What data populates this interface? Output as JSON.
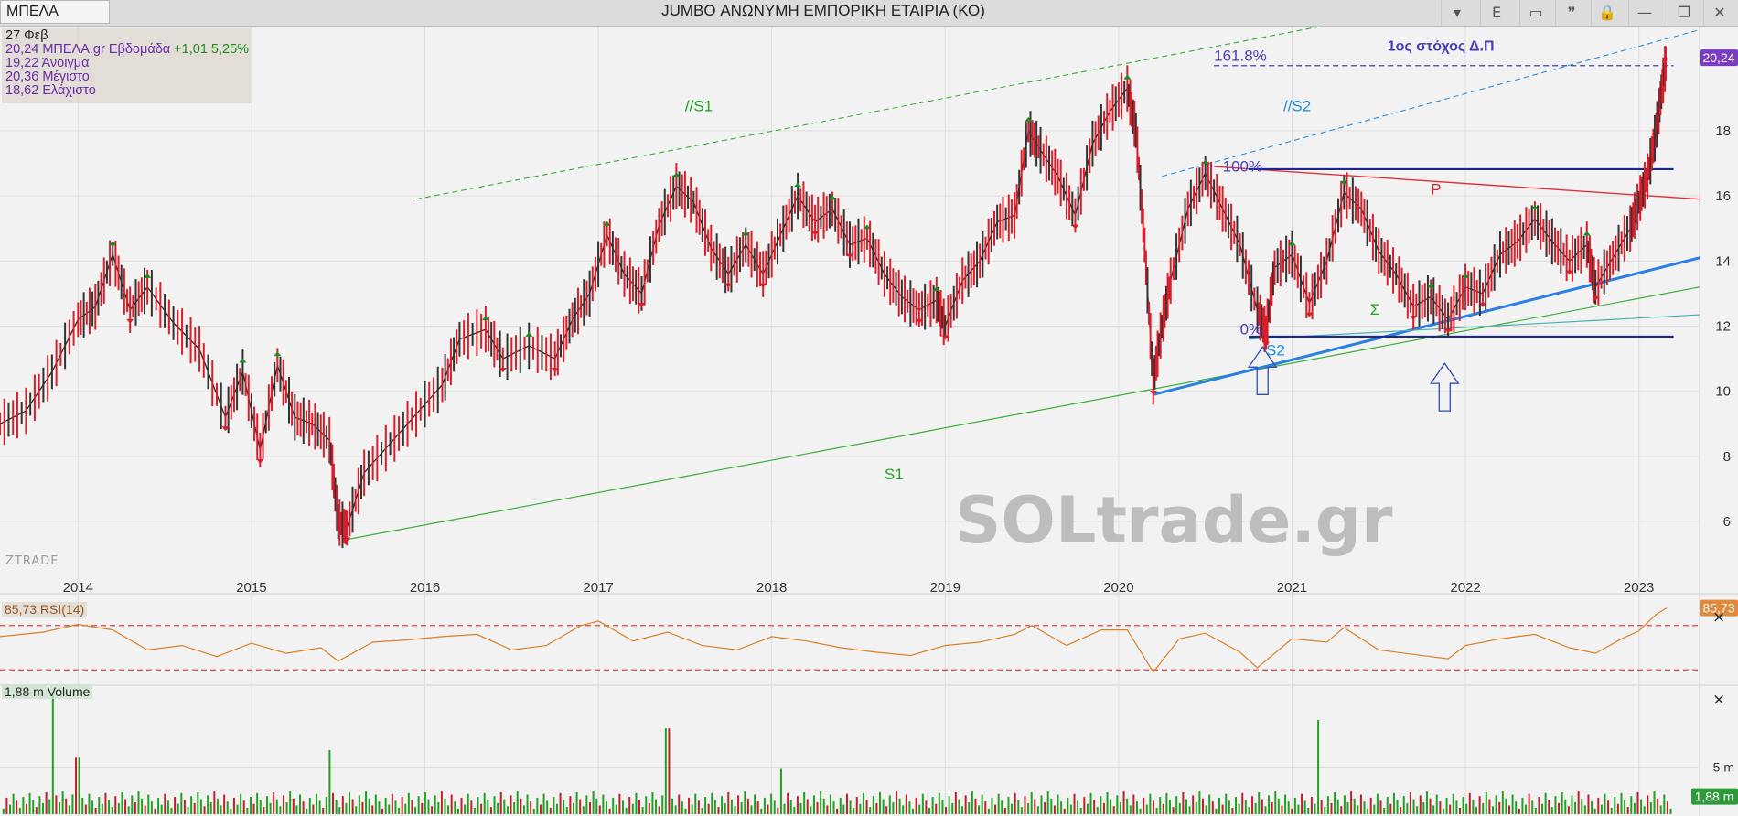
{
  "toolbar": {
    "symbol": "ΜΠΕΛΑ",
    "title": "JUMBO ΑΝΩΝΥΜΗ ΕΜΠΟΡΙΚΗ ΕΤΑΙΡΙΑ (ΚΟ)",
    "buttons": [
      {
        "name": "dropdown-button",
        "glyph": "▾"
      },
      {
        "name": "e-button",
        "glyph": "E"
      },
      {
        "name": "panel-button",
        "glyph": "▭"
      },
      {
        "name": "comment-button",
        "glyph": "❞"
      },
      {
        "name": "lock-button",
        "glyph": "🔒"
      },
      {
        "name": "minimize-button",
        "glyph": "—"
      },
      {
        "name": "restore-button",
        "glyph": "❐"
      },
      {
        "name": "close-button",
        "glyph": "✕"
      }
    ]
  },
  "legend": {
    "date": "27 Φεβ",
    "price_prefix": "20,24 ΜΠΕΛΑ.gr Εβδομάδα ",
    "change": "+1,01 5,25%",
    "open": "19,22 Άνοιγμα",
    "high": "20,36 Μέγιστο",
    "low": "18,62 Ελάχιστο"
  },
  "watermark": "SOLtrade.gr",
  "brand": "ZTRADE",
  "rsi_label": "85,73 RSI(14)",
  "volume_label": "1,88 m Volume",
  "chart_data": {
    "type": "line",
    "title": "JUMBO ΑΝΩΝΥΜΗ ΕΜΠΟΡΙΚΗ ΕΤΑΙΡΙΑ (ΚΟ)",
    "xlabel": "",
    "ylabel": "",
    "x_range": [
      2013.55,
      2023.35
    ],
    "ylim": [
      4.6,
      21.2
    ],
    "x_ticks": [
      2014,
      2015,
      2016,
      2017,
      2018,
      2019,
      2020,
      2021,
      2022,
      2023
    ],
    "x_tick_labels": [
      "2014",
      "2015",
      "2016",
      "2017",
      "2018",
      "2019",
      "2020",
      "2021",
      "2022",
      "2023"
    ],
    "y_ticks": [
      6,
      8,
      10,
      12,
      14,
      16,
      18
    ],
    "y_tick_labels": [
      "6",
      "8",
      "10",
      "12",
      "14",
      "16",
      "18"
    ],
    "price_series": {
      "name": "ΜΠΕΛΑ",
      "points": [
        [
          2013.55,
          9.0
        ],
        [
          2013.7,
          9.4
        ],
        [
          2013.85,
          10.6
        ],
        [
          2014.0,
          12.2
        ],
        [
          2014.1,
          12.6
        ],
        [
          2014.2,
          14.2
        ],
        [
          2014.3,
          12.5
        ],
        [
          2014.4,
          13.2
        ],
        [
          2014.55,
          12.1
        ],
        [
          2014.7,
          11.3
        ],
        [
          2014.85,
          9.2
        ],
        [
          2014.95,
          10.6
        ],
        [
          2015.05,
          8.2
        ],
        [
          2015.15,
          10.8
        ],
        [
          2015.25,
          9.2
        ],
        [
          2015.35,
          9.0
        ],
        [
          2015.45,
          8.5
        ],
        [
          2015.5,
          6.0
        ],
        [
          2015.55,
          5.8
        ],
        [
          2015.65,
          7.5
        ],
        [
          2015.8,
          8.4
        ],
        [
          2015.95,
          9.3
        ],
        [
          2016.1,
          10.2
        ],
        [
          2016.2,
          11.6
        ],
        [
          2016.35,
          11.9
        ],
        [
          2016.45,
          11.0
        ],
        [
          2016.6,
          11.4
        ],
        [
          2016.75,
          11.0
        ],
        [
          2016.85,
          12.2
        ],
        [
          2016.95,
          13.0
        ],
        [
          2017.05,
          14.8
        ],
        [
          2017.15,
          13.6
        ],
        [
          2017.25,
          13.0
        ],
        [
          2017.35,
          15.1
        ],
        [
          2017.45,
          16.3
        ],
        [
          2017.55,
          15.8
        ],
        [
          2017.65,
          14.4
        ],
        [
          2017.75,
          13.6
        ],
        [
          2017.85,
          14.5
        ],
        [
          2017.95,
          13.6
        ],
        [
          2018.05,
          14.8
        ],
        [
          2018.15,
          16.0
        ],
        [
          2018.25,
          15.2
        ],
        [
          2018.35,
          15.6
        ],
        [
          2018.45,
          14.5
        ],
        [
          2018.55,
          14.7
        ],
        [
          2018.65,
          13.6
        ],
        [
          2018.75,
          12.9
        ],
        [
          2018.85,
          12.5
        ],
        [
          2018.95,
          12.8
        ],
        [
          2019.0,
          12.0
        ],
        [
          2019.1,
          13.4
        ],
        [
          2019.2,
          14.0
        ],
        [
          2019.3,
          15.2
        ],
        [
          2019.4,
          15.4
        ],
        [
          2019.48,
          18.0
        ],
        [
          2019.55,
          17.4
        ],
        [
          2019.65,
          16.6
        ],
        [
          2019.75,
          15.4
        ],
        [
          2019.85,
          17.6
        ],
        [
          2019.95,
          18.6
        ],
        [
          2020.05,
          19.3
        ],
        [
          2020.1,
          18.0
        ],
        [
          2020.15,
          14.5
        ],
        [
          2020.2,
          10.3
        ],
        [
          2020.25,
          12.0
        ],
        [
          2020.3,
          13.4
        ],
        [
          2020.4,
          15.6
        ],
        [
          2020.5,
          16.7
        ],
        [
          2020.6,
          15.6
        ],
        [
          2020.7,
          14.5
        ],
        [
          2020.8,
          12.5
        ],
        [
          2020.85,
          11.8
        ],
        [
          2020.9,
          13.8
        ],
        [
          2021.0,
          14.2
        ],
        [
          2021.1,
          12.7
        ],
        [
          2021.2,
          14.0
        ],
        [
          2021.3,
          16.1
        ],
        [
          2021.4,
          15.6
        ],
        [
          2021.5,
          14.3
        ],
        [
          2021.6,
          13.6
        ],
        [
          2021.7,
          12.6
        ],
        [
          2021.8,
          12.9
        ],
        [
          2021.9,
          12.2
        ],
        [
          2022.0,
          13.2
        ],
        [
          2022.1,
          13.0
        ],
        [
          2022.2,
          14.2
        ],
        [
          2022.3,
          14.6
        ],
        [
          2022.4,
          15.3
        ],
        [
          2022.5,
          14.6
        ],
        [
          2022.6,
          14.0
        ],
        [
          2022.7,
          14.5
        ],
        [
          2022.75,
          13.2
        ],
        [
          2022.85,
          14.1
        ],
        [
          2022.95,
          15.0
        ],
        [
          2023.0,
          15.8
        ],
        [
          2023.05,
          16.6
        ],
        [
          2023.1,
          18.0
        ],
        [
          2023.13,
          19.2
        ],
        [
          2023.16,
          20.24
        ]
      ],
      "last_label": "20,24"
    },
    "annotations": [
      {
        "text": "//S1",
        "x": 2017.5,
        "y": 18.6,
        "color": "#22a022"
      },
      {
        "text": "//S2",
        "x": 2020.95,
        "y": 18.6,
        "color": "#1a8fe0"
      },
      {
        "text": "1ος στόχος Δ.Π",
        "x": 2021.55,
        "y": 20.45,
        "color": "#4a3fb5"
      },
      {
        "text": "161.8%",
        "x": 2020.55,
        "y": 20.15,
        "color": "#4a3fb5"
      },
      {
        "text": "100%",
        "x": 2020.6,
        "y": 16.75,
        "color": "#4a3fb5"
      },
      {
        "text": "0%",
        "x": 2020.7,
        "y": 11.75,
        "color": "#4a3fb5"
      },
      {
        "text": "P",
        "x": 2021.8,
        "y": 16.05,
        "color": "#d91e2a"
      },
      {
        "text": "Σ",
        "x": 2021.45,
        "y": 12.35,
        "color": "#22a022"
      },
      {
        "text": "S2",
        "x": 2020.85,
        "y": 11.1,
        "color": "#1a8fe0"
      },
      {
        "text": "S1",
        "x": 2018.65,
        "y": 7.3,
        "color": "#22a022"
      }
    ],
    "rsi": {
      "name": "RSI(14)",
      "last": "85,73",
      "levels": [
        70,
        30
      ],
      "ylim": [
        22,
        92
      ],
      "points": [
        [
          2013.55,
          60
        ],
        [
          2013.8,
          64
        ],
        [
          2014.0,
          71
        ],
        [
          2014.2,
          66
        ],
        [
          2014.4,
          48
        ],
        [
          2014.6,
          52
        ],
        [
          2014.8,
          42
        ],
        [
          2015.0,
          54
        ],
        [
          2015.2,
          45
        ],
        [
          2015.4,
          50
        ],
        [
          2015.5,
          38
        ],
        [
          2015.7,
          55
        ],
        [
          2015.9,
          57
        ],
        [
          2016.1,
          60
        ],
        [
          2016.3,
          62
        ],
        [
          2016.5,
          48
        ],
        [
          2016.7,
          52
        ],
        [
          2016.9,
          70
        ],
        [
          2017.0,
          74
        ],
        [
          2017.2,
          56
        ],
        [
          2017.4,
          64
        ],
        [
          2017.6,
          52
        ],
        [
          2017.8,
          48
        ],
        [
          2018.0,
          60
        ],
        [
          2018.2,
          56
        ],
        [
          2018.4,
          50
        ],
        [
          2018.6,
          46
        ],
        [
          2018.8,
          43
        ],
        [
          2019.0,
          52
        ],
        [
          2019.2,
          55
        ],
        [
          2019.4,
          62
        ],
        [
          2019.5,
          70
        ],
        [
          2019.7,
          52
        ],
        [
          2019.9,
          66
        ],
        [
          2020.05,
          66
        ],
        [
          2020.2,
          28
        ],
        [
          2020.35,
          58
        ],
        [
          2020.5,
          63
        ],
        [
          2020.7,
          46
        ],
        [
          2020.8,
          32
        ],
        [
          2021.0,
          58
        ],
        [
          2021.2,
          55
        ],
        [
          2021.3,
          68
        ],
        [
          2021.5,
          48
        ],
        [
          2021.7,
          44
        ],
        [
          2021.9,
          40
        ],
        [
          2022.0,
          52
        ],
        [
          2022.2,
          58
        ],
        [
          2022.4,
          62
        ],
        [
          2022.6,
          50
        ],
        [
          2022.75,
          45
        ],
        [
          2022.9,
          58
        ],
        [
          2023.0,
          65
        ],
        [
          2023.1,
          80
        ],
        [
          2023.16,
          85.73
        ]
      ]
    },
    "volume": {
      "name": "Volume",
      "last": "1,88 m",
      "y_ticks": [
        5
      ],
      "y_tick_labels": [
        "5 m"
      ],
      "ylim": [
        0,
        13.5
      ],
      "spikes": [
        [
          2013.85,
          13.0
        ],
        [
          2015.45,
          6.8
        ],
        [
          2017.4,
          9.1
        ],
        [
          2021.15,
          10.0
        ],
        [
          2018.05,
          4.8
        ],
        [
          2014.0,
          6.0
        ]
      ]
    }
  }
}
